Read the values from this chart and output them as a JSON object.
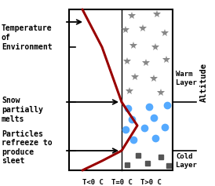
{
  "bg_color": "#ffffff",
  "temp_line_color": "#990000",
  "snowflake_color": "#888888",
  "raindrop_color": "#55aaff",
  "sleet_color": "#555555",
  "x_labels": [
    "T<0 C",
    "T=0 C",
    "T>0 C"
  ],
  "title_text": "Temperature\nof\nEnvironment",
  "snow_annot": "Snow\npartially\nmelts",
  "sleet_annot": "Particles\nrefreeze to\nproduce\nsleet",
  "warm_label": "Warm\nLayer",
  "cold_label": "Cold\nLayer",
  "altitude_label": "Altitude",
  "figsize": [
    2.74,
    2.37
  ],
  "dpi": 100
}
